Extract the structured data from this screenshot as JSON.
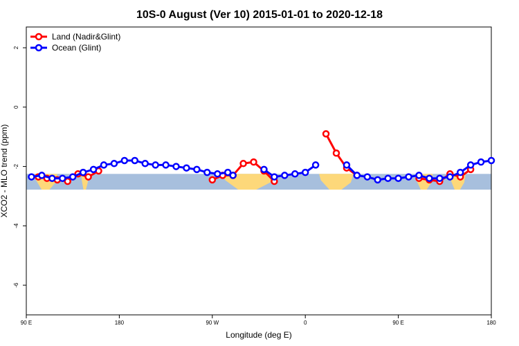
{
  "chart_data": {
    "type": "line",
    "title": "10S-0 August (Ver 10)   2015-01-01 to 2020-12-18",
    "xlabel": "Longitude (deg E)",
    "ylabel": "XCO2 - MLO trend (ppm)",
    "xlim": [
      -90,
      180
    ],
    "ylim": [
      -7,
      2.7
    ],
    "x_ticks": [
      {
        "value": -90,
        "label": "90 E"
      },
      {
        "value": -36,
        "label": "180"
      },
      {
        "value": 18,
        "label": "90 W"
      },
      {
        "value": 72,
        "label": "0"
      },
      {
        "value": 126,
        "label": "90 E"
      },
      {
        "value": 180,
        "label": "180"
      }
    ],
    "y_ticks": [
      {
        "value": 2,
        "label": "2"
      },
      {
        "value": 0,
        "label": "0"
      },
      {
        "value": -2,
        "label": "-2"
      },
      {
        "value": -4,
        "label": "-4"
      },
      {
        "value": -6,
        "label": "-6"
      }
    ],
    "grid": false,
    "legend_position": "top-left",
    "series": [
      {
        "name": "Land (Nadir&Glint)",
        "color": "#ff0000",
        "segments": [
          [
            [
              -83,
              -2.35
            ],
            [
              -78,
              -2.4
            ],
            [
              -72,
              -2.45
            ],
            [
              -66,
              -2.5
            ],
            [
              -60,
              -2.25
            ],
            [
              -54,
              -2.35
            ],
            [
              -48,
              -2.15
            ]
          ],
          [
            [
              18,
              -2.45
            ],
            [
              24,
              -2.3
            ],
            [
              30,
              -2.3
            ],
            [
              36,
              -1.9
            ],
            [
              42,
              -1.85
            ],
            [
              48,
              -2.15
            ],
            [
              54,
              -2.5
            ]
          ],
          [
            [
              84,
              -0.9
            ],
            [
              90,
              -1.55
            ],
            [
              96,
              -2.05
            ],
            [
              102,
              -2.3
            ]
          ],
          [
            [
              138,
              -2.4
            ],
            [
              144,
              -2.45
            ],
            [
              150,
              -2.5
            ],
            [
              156,
              -2.25
            ],
            [
              162,
              -2.35
            ],
            [
              168,
              -2.1
            ]
          ]
        ]
      },
      {
        "name": "Ocean (Glint)",
        "color": "#0000ff",
        "segments": [
          [
            [
              -87,
              -2.35
            ],
            [
              -81,
              -2.3
            ],
            [
              -75,
              -2.4
            ],
            [
              -69,
              -2.4
            ],
            [
              -63,
              -2.35
            ],
            [
              -57,
              -2.2
            ],
            [
              -51,
              -2.1
            ],
            [
              -45,
              -1.95
            ],
            [
              -39,
              -1.9
            ],
            [
              -33,
              -1.8
            ],
            [
              -27,
              -1.8
            ],
            [
              -21,
              -1.9
            ],
            [
              -15,
              -1.95
            ],
            [
              -9,
              -1.95
            ],
            [
              -3,
              -2.0
            ],
            [
              3,
              -2.05
            ],
            [
              9,
              -2.1
            ],
            [
              15,
              -2.2
            ],
            [
              21,
              -2.25
            ],
            [
              27,
              -2.2
            ],
            [
              30,
              -2.3
            ]
          ],
          [
            [
              48,
              -2.1
            ],
            [
              54,
              -2.35
            ],
            [
              60,
              -2.3
            ],
            [
              66,
              -2.25
            ],
            [
              72,
              -2.2
            ],
            [
              78,
              -1.95
            ]
          ],
          [
            [
              96,
              -1.95
            ],
            [
              102,
              -2.3
            ],
            [
              108,
              -2.35
            ],
            [
              114,
              -2.45
            ],
            [
              120,
              -2.4
            ],
            [
              126,
              -2.4
            ],
            [
              132,
              -2.35
            ],
            [
              138,
              -2.3
            ],
            [
              144,
              -2.4
            ],
            [
              150,
              -2.4
            ],
            [
              156,
              -2.35
            ],
            [
              162,
              -2.2
            ],
            [
              168,
              -1.95
            ],
            [
              174,
              -1.85
            ],
            [
              180,
              -1.8
            ]
          ]
        ]
      }
    ],
    "background_band": {
      "y_top": -2.25,
      "y_bottom": -2.78,
      "ocean_color": "#a7bfdd",
      "land_color": "#fdd87a"
    },
    "land_regions": [
      [
        -85,
        -72
      ],
      [
        -58,
        -54
      ],
      [
        24,
        54
      ],
      [
        80,
        100
      ],
      [
        136,
        146
      ],
      [
        156,
        165
      ]
    ]
  }
}
